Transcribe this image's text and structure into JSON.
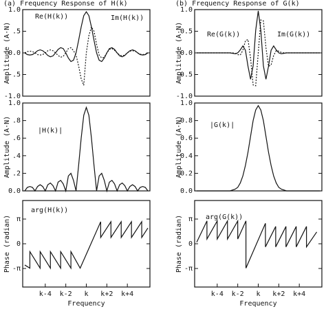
{
  "chart_data": [
    {
      "type": "line",
      "title": "(a) Frequency Response of H(k)",
      "ylabel": "Amplitude (A·N)",
      "xlim": [
        -6.2,
        6.2
      ],
      "ylim": [
        -1,
        1
      ],
      "yticks": [
        {
          "value": 1,
          "label": "1.0"
        },
        {
          "value": 0.5,
          "label": ".5"
        },
        {
          "value": 0,
          "label": "0.0"
        },
        {
          "value": -0.5,
          "label": "-.5"
        },
        {
          "value": -1,
          "label": "-1.0"
        }
      ],
      "x": [
        -6,
        -5.75,
        -5.5,
        -5.25,
        -5,
        -4.75,
        -4.5,
        -4.25,
        -4,
        -3.75,
        -3.5,
        -3.25,
        -3,
        -2.75,
        -2.5,
        -2.25,
        -2,
        -1.75,
        -1.5,
        -1.25,
        -1,
        -0.75,
        -0.5,
        -0.25,
        0,
        0.25,
        0.5,
        0.75,
        1,
        1.25,
        1.5,
        1.75,
        2,
        2.25,
        2.5,
        2.75,
        3,
        3.25,
        3.5,
        3.75,
        4,
        4.25,
        4.5,
        4.75,
        5,
        5.25,
        5.5,
        5.75,
        6
      ],
      "series": [
        {
          "name": "Re(H(k))",
          "color": "#111111",
          "linestyle": "solid",
          "values": [
            0,
            -0.04,
            -0.05,
            -0.04,
            0,
            0.05,
            0.07,
            0.05,
            0,
            -0.06,
            -0.09,
            -0.07,
            0,
            0.08,
            0.12,
            0.1,
            0,
            -0.12,
            -0.2,
            -0.17,
            0,
            0.29,
            0.6,
            0.86,
            0.95,
            0.86,
            0.6,
            0.29,
            0,
            -0.17,
            -0.2,
            -0.12,
            0,
            0.1,
            0.12,
            0.08,
            0,
            -0.07,
            -0.09,
            -0.06,
            0,
            0.05,
            0.07,
            0.05,
            0,
            -0.04,
            -0.05,
            -0.04,
            0
          ]
        },
        {
          "name": "Im(H(k))",
          "color": "#111111",
          "linestyle": "dotted",
          "values": [
            0,
            0.03,
            0.04,
            0.03,
            0,
            -0.04,
            -0.05,
            -0.04,
            0,
            0.05,
            0.07,
            0.05,
            0,
            -0.06,
            -0.1,
            -0.08,
            0,
            0.1,
            0.12,
            0.05,
            -0.05,
            -0.3,
            -0.6,
            -0.75,
            0,
            0.4,
            0.6,
            0.5,
            0.2,
            -0.05,
            -0.12,
            -0.1,
            0,
            0.08,
            0.1,
            0.06,
            0,
            -0.05,
            -0.07,
            -0.05,
            0,
            0.04,
            0.05,
            0.04,
            0,
            -0.03,
            -0.04,
            -0.03,
            0
          ]
        }
      ]
    },
    {
      "type": "line",
      "ylabel": "Amplitude (A·N)",
      "xlim": [
        -6.2,
        6.2
      ],
      "ylim": [
        0,
        1
      ],
      "yticks": [
        {
          "value": 0,
          "label": "0.0"
        },
        {
          "value": 0.2,
          "label": ".2"
        },
        {
          "value": 0.4,
          "label": ".4"
        },
        {
          "value": 0.6,
          "label": ".6"
        },
        {
          "value": 0.8,
          "label": ".8"
        },
        {
          "value": 1,
          "label": "1.0"
        }
      ],
      "x": [
        -6,
        -5.75,
        -5.5,
        -5.25,
        -5,
        -4.75,
        -4.5,
        -4.25,
        -4,
        -3.75,
        -3.5,
        -3.25,
        -3,
        -2.75,
        -2.5,
        -2.25,
        -2,
        -1.75,
        -1.5,
        -1.25,
        -1,
        -0.75,
        -0.5,
        -0.25,
        0,
        0.25,
        0.5,
        0.75,
        1,
        1.25,
        1.5,
        1.75,
        2,
        2.25,
        2.5,
        2.75,
        3,
        3.25,
        3.5,
        3.75,
        4,
        4.25,
        4.5,
        4.75,
        5,
        5.25,
        5.5,
        5.75,
        6
      ],
      "series": [
        {
          "name": "|H(k)|",
          "color": "#111111",
          "linestyle": "solid",
          "values": [
            0,
            0.04,
            0.05,
            0.04,
            0,
            0.05,
            0.07,
            0.05,
            0,
            0.07,
            0.09,
            0.06,
            0,
            0.1,
            0.12,
            0.08,
            0,
            0.17,
            0.2,
            0.12,
            0,
            0.29,
            0.6,
            0.86,
            0.95,
            0.86,
            0.6,
            0.29,
            0,
            0.17,
            0.2,
            0.12,
            0,
            0.1,
            0.12,
            0.08,
            0,
            0.07,
            0.09,
            0.06,
            0,
            0.05,
            0.07,
            0.05,
            0,
            0.04,
            0.05,
            0.04,
            0
          ]
        }
      ]
    },
    {
      "type": "line",
      "ylabel": "Phase (radian)",
      "xlabel": "Frequency",
      "xlim": [
        -6.2,
        6.2
      ],
      "ylim": [
        -5.5,
        5.5
      ],
      "yticks": [
        {
          "value": 3.1416,
          "label": "π"
        },
        0,
        {
          "value": -3.1416,
          "label": "-π"
        }
      ],
      "xticks": [
        {
          "value": -4,
          "label": "k-4"
        },
        {
          "value": -2,
          "label": "k-2"
        },
        {
          "value": 0,
          "label": "k"
        },
        {
          "value": 2,
          "label": "k+2"
        },
        {
          "value": 4,
          "label": "k+4"
        }
      ],
      "series": [
        {
          "name": "arg(H(k))",
          "color": "#111111",
          "linestyle": "solid",
          "x": [
            -6,
            -5.5,
            -5.5,
            -4.5,
            -4.5,
            -3.5,
            -3.5,
            -2.5,
            -2.5,
            -1.5,
            -1.5,
            -0.6,
            1.4,
            1.4,
            2.4,
            2.4,
            3.4,
            3.4,
            4.4,
            4.4,
            5.4,
            5.4,
            6
          ],
          "values": [
            -2.7,
            -3.1,
            -1.0,
            -3.1,
            -1.0,
            -3.1,
            -1.0,
            -3.1,
            -1.0,
            -3.1,
            -1.0,
            -3.1,
            2.8,
            0.8,
            2.8,
            0.8,
            2.8,
            0.8,
            2.8,
            0.8,
            2.8,
            0.8,
            2.0
          ]
        }
      ]
    },
    {
      "type": "line",
      "title": "(b) Frequency Response of G(k)",
      "ylabel": "Amplitude (A·N)",
      "xlim": [
        -6.2,
        6.2
      ],
      "ylim": [
        -1,
        1
      ],
      "yticks": [
        {
          "value": 1,
          "label": "1.0"
        },
        {
          "value": 0.5,
          "label": "0.5"
        },
        {
          "value": 0,
          "label": "0.0"
        },
        {
          "value": -0.5,
          "label": "-0.5"
        },
        {
          "value": -1,
          "label": "-1.0"
        }
      ],
      "x": [
        -6,
        -5.75,
        -5.5,
        -5.25,
        -5,
        -4.75,
        -4.5,
        -4.25,
        -4,
        -3.75,
        -3.5,
        -3.25,
        -3,
        -2.75,
        -2.5,
        -2.25,
        -2,
        -1.75,
        -1.5,
        -1.25,
        -1,
        -0.75,
        -0.5,
        -0.25,
        0,
        0.25,
        0.5,
        0.75,
        1,
        1.25,
        1.5,
        1.75,
        2,
        2.25,
        2.5,
        2.75,
        3,
        3.25,
        3.5,
        3.75,
        4,
        4.25,
        4.5,
        4.75,
        5,
        5.25,
        5.5,
        5.75,
        6
      ],
      "series": [
        {
          "name": "Re(G(k))",
          "color": "#111111",
          "linestyle": "solid",
          "values": [
            0,
            0,
            0,
            0,
            0,
            0,
            0,
            0,
            0,
            0,
            0,
            0,
            0,
            0,
            -0.01,
            -0.02,
            0,
            0.07,
            0.16,
            0.06,
            -0.31,
            -0.61,
            -0.3,
            0.52,
            0.97,
            0.52,
            -0.3,
            -0.61,
            -0.31,
            0.06,
            0.16,
            0.07,
            0,
            -0.02,
            -0.01,
            0,
            0,
            0,
            0,
            0,
            0,
            0,
            0,
            0,
            0,
            0,
            0,
            0,
            0
          ]
        },
        {
          "name": "Im(G(k))",
          "color": "#111111",
          "linestyle": "dotted",
          "values": [
            0,
            0,
            0,
            0,
            0,
            0,
            0,
            0,
            0,
            0,
            0,
            0,
            0,
            0,
            0,
            -0.01,
            -0.04,
            -0.05,
            0.06,
            0.28,
            0.31,
            -0.12,
            -0.74,
            -0.76,
            0,
            0.76,
            0.74,
            0.12,
            -0.31,
            -0.28,
            -0.06,
            0.05,
            0.04,
            0.01,
            0,
            0,
            0,
            0,
            0,
            0,
            0,
            0,
            0,
            0,
            0,
            0,
            0,
            0,
            0
          ]
        }
      ]
    },
    {
      "type": "line",
      "ylabel": "Amplitude (A·N)",
      "xlim": [
        -6.2,
        6.2
      ],
      "ylim": [
        0,
        1
      ],
      "yticks": [
        {
          "value": 0,
          "label": "0.0"
        },
        {
          "value": 0.2,
          "label": "0.2"
        },
        {
          "value": 0.4,
          "label": "0.4"
        },
        {
          "value": 0.6,
          "label": "0.6"
        },
        {
          "value": 0.8,
          "label": "0.8"
        },
        {
          "value": 1,
          "label": "1.0"
        }
      ],
      "x": [
        -6,
        -5.75,
        -5.5,
        -5.25,
        -5,
        -4.75,
        -4.5,
        -4.25,
        -4,
        -3.75,
        -3.5,
        -3.25,
        -3,
        -2.75,
        -2.5,
        -2.25,
        -2,
        -1.75,
        -1.5,
        -1.25,
        -1,
        -0.75,
        -0.5,
        -0.25,
        0,
        0.25,
        0.5,
        0.75,
        1,
        1.25,
        1.5,
        1.75,
        2,
        2.25,
        2.5,
        2.75,
        3,
        3.25,
        3.5,
        3.75,
        4,
        4.25,
        4.5,
        4.75,
        5,
        5.25,
        5.5,
        5.75,
        6
      ],
      "series": [
        {
          "name": "|G(k)|",
          "color": "#111111",
          "linestyle": "solid",
          "values": [
            0,
            0,
            0,
            0,
            0,
            0,
            0,
            0,
            0,
            0,
            0,
            0,
            0,
            0,
            0.01,
            0.02,
            0.04,
            0.09,
            0.17,
            0.29,
            0.44,
            0.62,
            0.8,
            0.92,
            0.97,
            0.92,
            0.8,
            0.62,
            0.44,
            0.29,
            0.17,
            0.09,
            0.04,
            0.02,
            0.01,
            0,
            0,
            0,
            0,
            0,
            0,
            0,
            0,
            0,
            0,
            0,
            0,
            0,
            0
          ]
        }
      ]
    },
    {
      "type": "line",
      "ylabel": "Phase (radian)",
      "xlabel": "Frequency",
      "xlim": [
        -6.2,
        6.2
      ],
      "ylim": [
        -5.5,
        5.5
      ],
      "yticks": [
        {
          "value": 3.1416,
          "label": "π"
        },
        0,
        {
          "value": -3.1416,
          "label": "-π"
        }
      ],
      "xticks": [
        {
          "value": -4,
          "label": "k-4"
        },
        {
          "value": -2,
          "label": "k-2"
        },
        {
          "value": 0,
          "label": "k"
        },
        {
          "value": 2,
          "label": "k+2"
        },
        {
          "value": 4,
          "label": "k+4"
        }
      ],
      "series": [
        {
          "name": "arg(G(k))",
          "color": "#111111",
          "linestyle": "solid",
          "x": [
            -6,
            -5,
            -5,
            -4,
            -4,
            -3,
            -3,
            -2,
            -2,
            -1.2,
            -1.2,
            0.7,
            0.7,
            1.7,
            1.7,
            2.7,
            2.7,
            3.7,
            3.7,
            4.7,
            4.7,
            5.7
          ],
          "values": [
            0.2,
            2.9,
            0.6,
            2.9,
            0.6,
            2.9,
            0.6,
            2.9,
            0.6,
            2.9,
            -3.1,
            2.6,
            -0.4,
            2.2,
            -0.4,
            2.2,
            -0.4,
            2.2,
            -0.4,
            2.2,
            -0.4,
            1.5
          ]
        }
      ]
    }
  ]
}
